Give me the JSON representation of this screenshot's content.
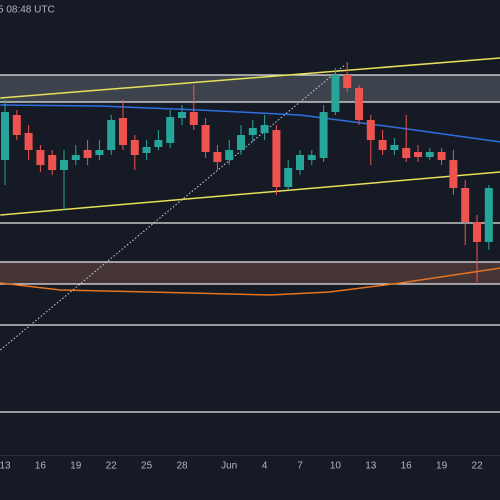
{
  "chart_data": {
    "type": "candlestick",
    "title": "5 08:48 UTC",
    "categories": [
      "13",
      null,
      null,
      "16",
      null,
      null,
      "19",
      null,
      null,
      "22",
      null,
      null,
      "25",
      null,
      null,
      "28",
      null,
      null,
      null,
      "Jun",
      null,
      null,
      "4",
      null,
      null,
      "7",
      null,
      null,
      "10",
      null,
      null,
      "13",
      null,
      null,
      "16",
      null,
      null,
      "19",
      null,
      null,
      "22",
      null
    ],
    "open": [
      295,
      340,
      322,
      305,
      300,
      285,
      295,
      305,
      300,
      305,
      337,
      315,
      302,
      308,
      312,
      337,
      343,
      330,
      303,
      295,
      305,
      320,
      322,
      325,
      268,
      285,
      295,
      297,
      343,
      380,
      367,
      335,
      315,
      305,
      307,
      303,
      298,
      303,
      295,
      267,
      233,
      213
    ],
    "high": [
      355,
      345,
      330,
      310,
      305,
      305,
      310,
      315,
      315,
      340,
      355,
      320,
      315,
      325,
      345,
      350,
      370,
      337,
      310,
      315,
      330,
      335,
      340,
      330,
      295,
      305,
      305,
      350,
      387,
      393,
      370,
      340,
      325,
      317,
      340,
      310,
      307,
      307,
      305,
      275,
      240,
      270
    ],
    "low": [
      270,
      315,
      295,
      283,
      280,
      245,
      290,
      290,
      295,
      300,
      305,
      285,
      295,
      305,
      307,
      330,
      325,
      297,
      285,
      290,
      300,
      313,
      315,
      260,
      265,
      280,
      290,
      293,
      340,
      363,
      330,
      290,
      300,
      300,
      293,
      293,
      295,
      290,
      260,
      210,
      173,
      205
    ],
    "close": [
      343,
      320,
      305,
      290,
      285,
      295,
      300,
      297,
      305,
      335,
      310,
      300,
      308,
      315,
      338,
      343,
      330,
      303,
      293,
      305,
      320,
      327,
      330,
      268,
      287,
      300,
      300,
      343,
      380,
      367,
      335,
      315,
      305,
      310,
      297,
      298,
      303,
      295,
      267,
      233,
      213,
      267
    ],
    "up_color": "#26a69a",
    "down_color": "#ef5350",
    "ylim": [
      0,
      455
    ],
    "zones": [
      {
        "range": [
          353,
          380
        ],
        "color": "#5d6670"
      },
      {
        "range": [
          171,
          193
        ],
        "color": "#6b4a46"
      }
    ],
    "hlines": [
      380,
      353,
      232,
      193,
      171,
      130,
      43
    ],
    "lines": [
      {
        "color": "#e8e05a",
        "style": "solid",
        "x": [
          -0.4,
          42
        ],
        "values": [
          357,
          397
        ]
      },
      {
        "color": "#e8e05a",
        "style": "solid",
        "x": [
          -0.4,
          42
        ],
        "values": [
          240,
          283
        ]
      },
      {
        "color": "#cfd2da",
        "style": "dotted",
        "x": [
          -0.4,
          28.8
        ],
        "values": [
          105,
          390
        ]
      },
      {
        "color": "#2f6fe0",
        "style": "solid",
        "x": [
          -0.4,
          8,
          16.5,
          25,
          33.5,
          42
        ],
        "values": [
          350,
          349,
          345,
          340,
          327,
          313
        ]
      },
      {
        "color": "#e8731e",
        "style": "solid",
        "x": [
          -0.4,
          4.7,
          12.3,
          22.5,
          27.5,
          33.5,
          42
        ],
        "values": [
          172,
          165,
          163,
          160,
          163,
          172,
          187
        ]
      }
    ]
  }
}
